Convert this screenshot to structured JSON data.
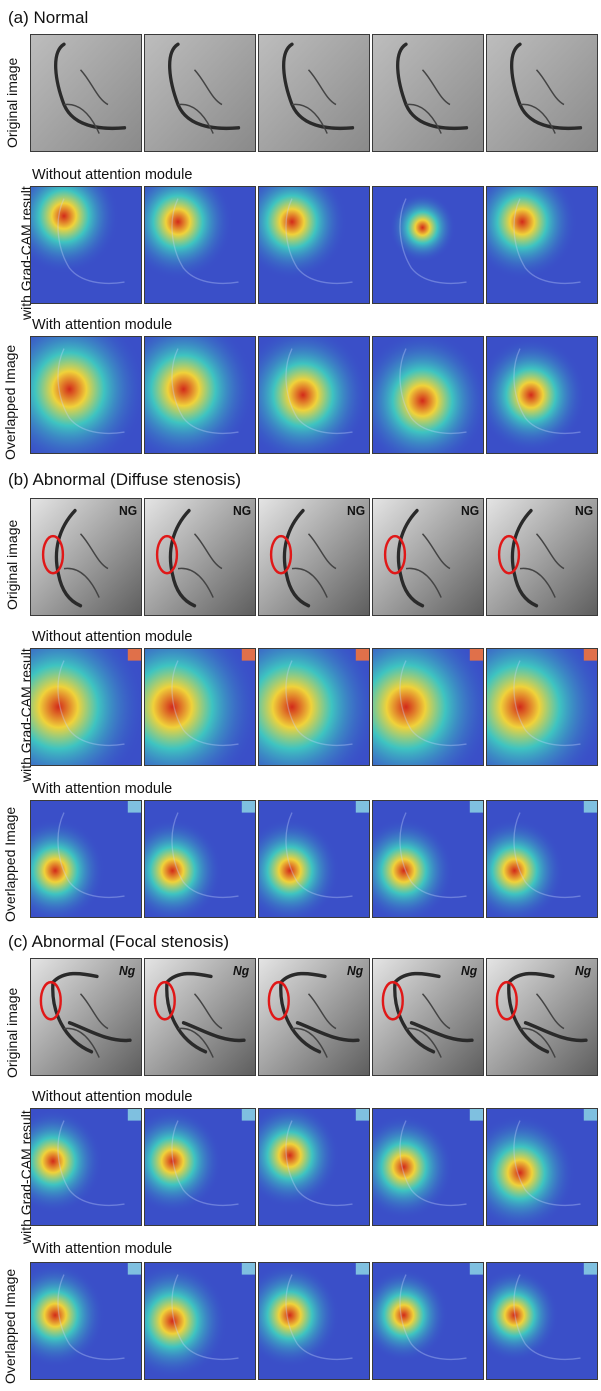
{
  "sections": [
    {
      "title": "(a) Normal",
      "tag": "",
      "rows": [
        {
          "kind": "orig",
          "caption": ""
        },
        {
          "kind": "cam",
          "caption": "Without attention module"
        },
        {
          "kind": "cam",
          "caption": "With attention module"
        }
      ]
    },
    {
      "title": "(b) Abnormal (Diffuse stenosis)",
      "tag": "NG",
      "rows": [
        {
          "kind": "orig",
          "caption": ""
        },
        {
          "kind": "cam",
          "caption": "Without attention module"
        },
        {
          "kind": "cam",
          "caption": "With attention module"
        }
      ]
    },
    {
      "title": "(c) Abnormal (Focal stenosis)",
      "tag": "Ng",
      "rows": [
        {
          "kind": "orig",
          "caption": ""
        },
        {
          "kind": "cam",
          "caption": "Without attention module"
        },
        {
          "kind": "cam",
          "caption": "With attention module"
        }
      ]
    }
  ],
  "side_labels": {
    "original": "Original image",
    "gradcam_line1": "Overlapped Image",
    "gradcam_line2": "with Grad-CAM result"
  },
  "colors": {
    "heatmap_background": "#3a4fc8",
    "heat_hot": "#d22a1a",
    "heat_warm": "#f0d23a",
    "heat_mid": "#3fd1c0",
    "stenosis_marker": "#e01818"
  }
}
